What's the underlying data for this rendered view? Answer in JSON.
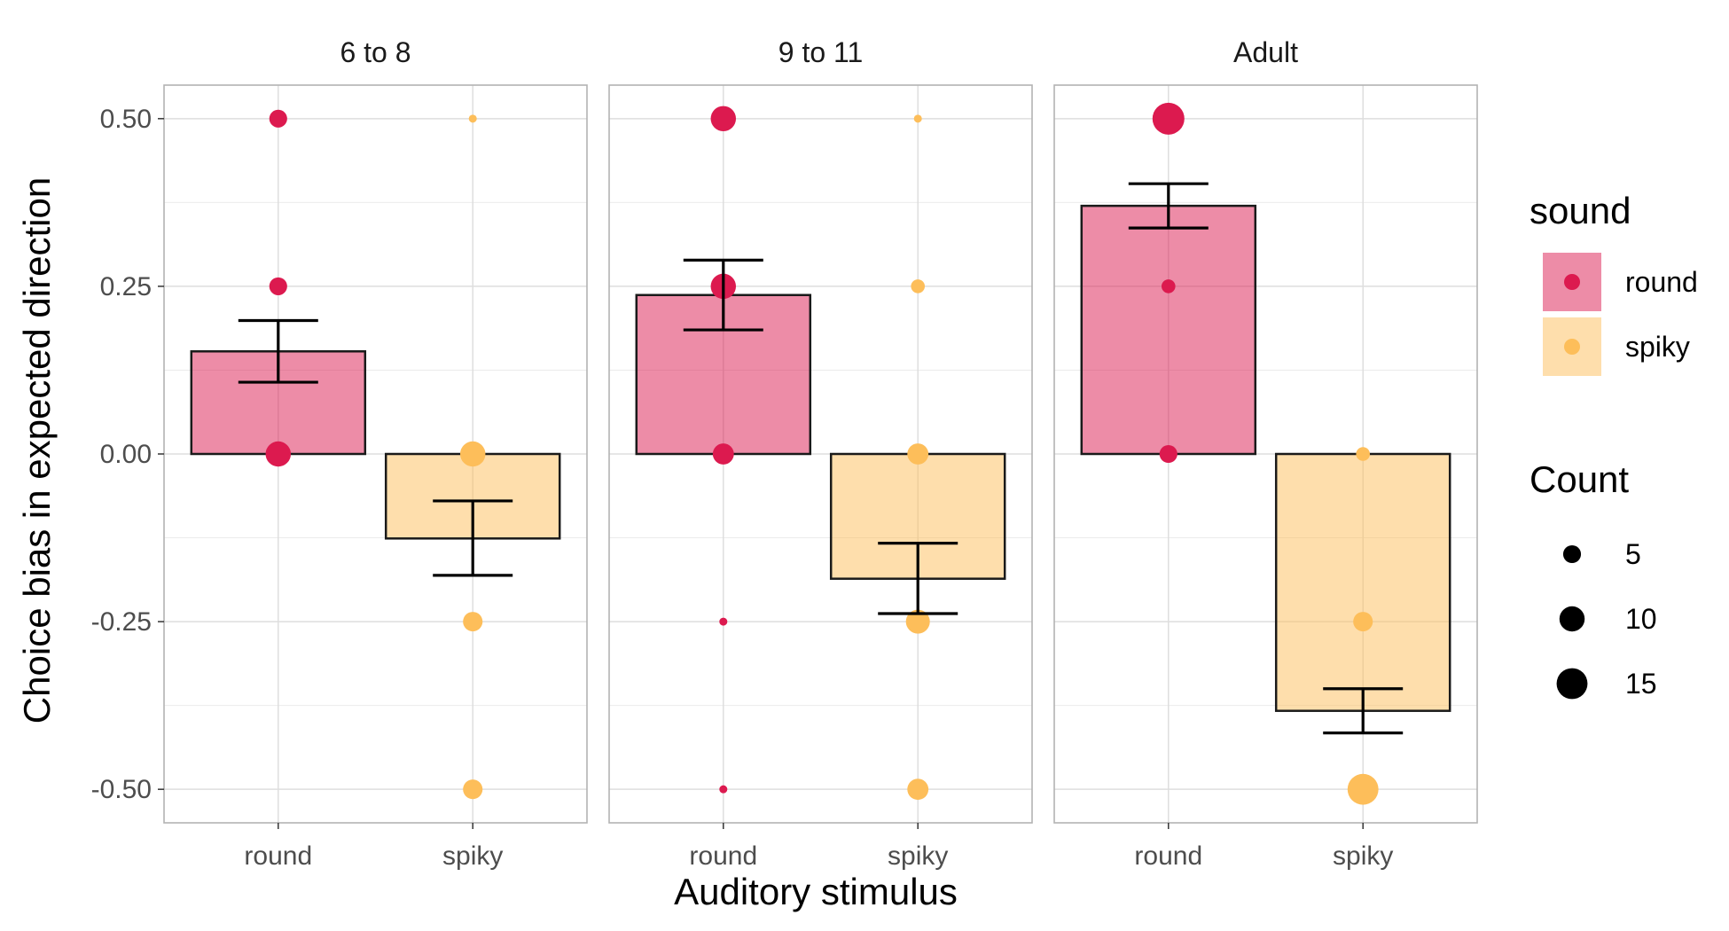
{
  "chart_data": {
    "type": "bar",
    "xlabel": "Auditory stimulus",
    "ylabel": "Choice bias in expected direction",
    "ylim": [
      -0.55,
      0.55
    ],
    "yticks": [
      0.5,
      0.25,
      0.0,
      -0.25,
      -0.5
    ],
    "ytick_labels": [
      "0.50",
      "0.25",
      "0.00",
      "-0.25",
      "-0.50"
    ],
    "categories": [
      "round",
      "spiky"
    ],
    "colors": {
      "round": "#DC1A4F",
      "spiky": "#FDBE5A"
    },
    "panels": [
      {
        "label": "6 to 8",
        "bars": [
          {
            "category": "round",
            "mean": 0.153,
            "se_low": 0.107,
            "se_high": 0.199
          },
          {
            "category": "spiky",
            "mean": -0.126,
            "se_low": -0.181,
            "se_high": -0.07
          }
        ],
        "points": [
          {
            "category": "round",
            "y": 0.5,
            "count": 5
          },
          {
            "category": "round",
            "y": 0.25,
            "count": 5
          },
          {
            "category": "round",
            "y": 0.0,
            "count": 10
          },
          {
            "category": "spiky",
            "y": 0.5,
            "count": 1
          },
          {
            "category": "spiky",
            "y": 0.0,
            "count": 10
          },
          {
            "category": "spiky",
            "y": -0.25,
            "count": 6
          },
          {
            "category": "spiky",
            "y": -0.5,
            "count": 6
          }
        ]
      },
      {
        "label": "9 to 11",
        "bars": [
          {
            "category": "round",
            "mean": 0.237,
            "se_low": 0.185,
            "se_high": 0.289
          },
          {
            "category": "spiky",
            "mean": -0.186,
            "se_low": -0.238,
            "se_high": -0.133
          }
        ],
        "points": [
          {
            "category": "round",
            "y": 0.5,
            "count": 10
          },
          {
            "category": "round",
            "y": 0.25,
            "count": 10
          },
          {
            "category": "round",
            "y": 0.0,
            "count": 7
          },
          {
            "category": "round",
            "y": -0.25,
            "count": 1
          },
          {
            "category": "round",
            "y": -0.5,
            "count": 1
          },
          {
            "category": "spiky",
            "y": 0.5,
            "count": 1
          },
          {
            "category": "spiky",
            "y": 0.25,
            "count": 3
          },
          {
            "category": "spiky",
            "y": 0.0,
            "count": 7
          },
          {
            "category": "spiky",
            "y": -0.25,
            "count": 9
          },
          {
            "category": "spiky",
            "y": -0.5,
            "count": 7
          }
        ]
      },
      {
        "label": "Adult",
        "bars": [
          {
            "category": "round",
            "mean": 0.37,
            "se_low": 0.337,
            "se_high": 0.403
          },
          {
            "category": "spiky",
            "mean": -0.383,
            "se_low": -0.416,
            "se_high": -0.35
          }
        ],
        "points": [
          {
            "category": "round",
            "y": 0.5,
            "count": 16
          },
          {
            "category": "round",
            "y": 0.25,
            "count": 3
          },
          {
            "category": "round",
            "y": 0.0,
            "count": 5
          },
          {
            "category": "spiky",
            "y": 0.0,
            "count": 3
          },
          {
            "category": "spiky",
            "y": -0.25,
            "count": 6
          },
          {
            "category": "spiky",
            "y": -0.5,
            "count": 15
          }
        ]
      }
    ],
    "legend": {
      "position": "right",
      "fill_title": "sound",
      "fill_items": [
        "round",
        "spiky"
      ],
      "size_title": "Count",
      "size_items": [
        {
          "label": "5",
          "count": 5
        },
        {
          "label": "10",
          "count": 10
        },
        {
          "label": "15",
          "count": 15
        }
      ]
    },
    "grid": true
  }
}
